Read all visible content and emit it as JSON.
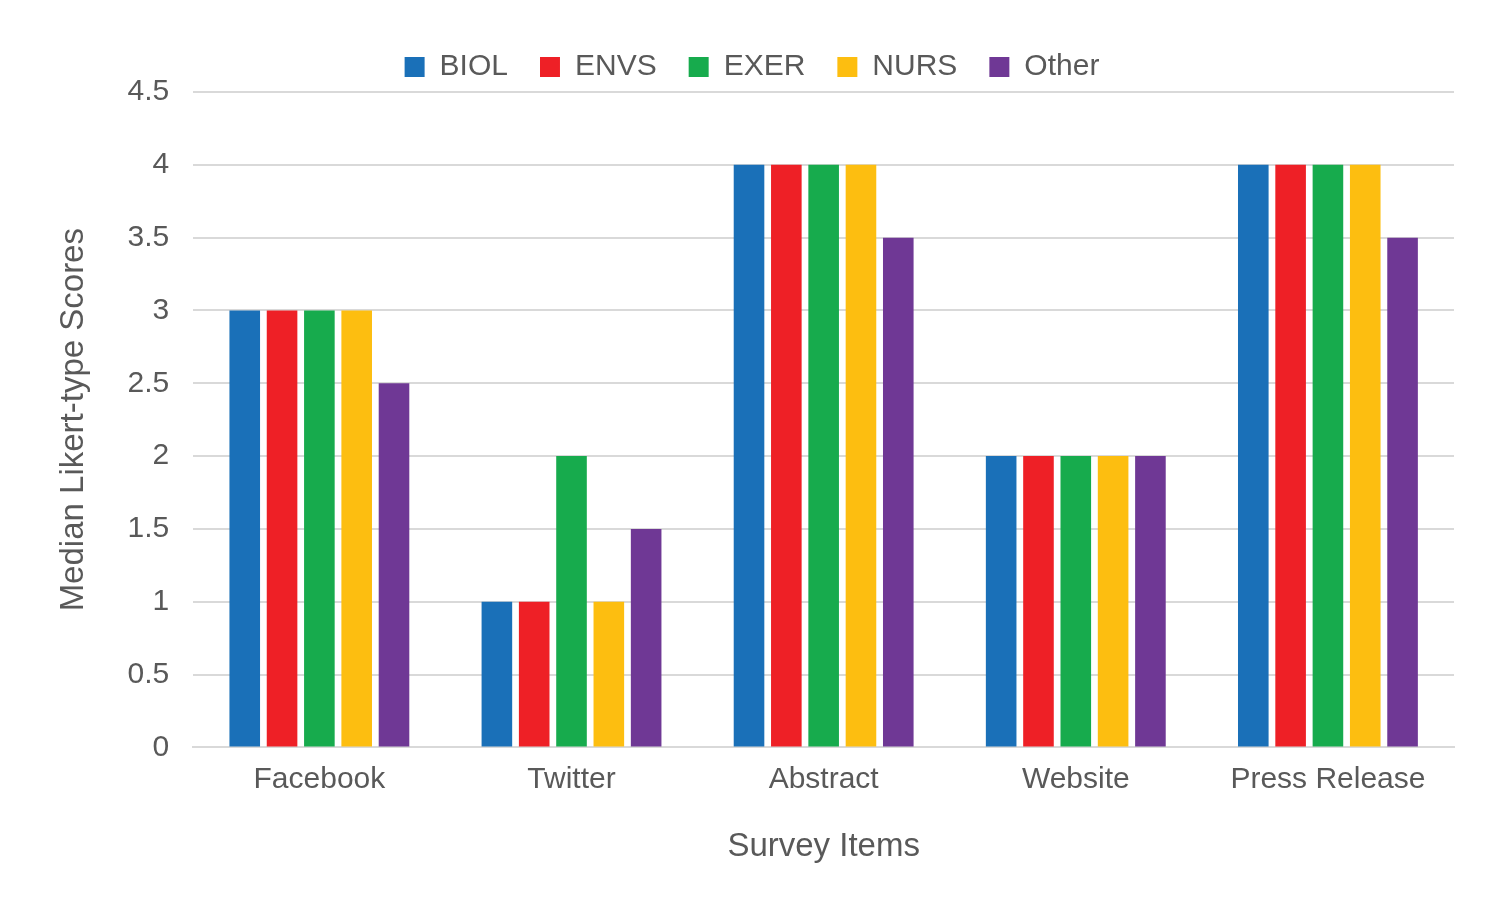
{
  "chart_data": {
    "type": "bar",
    "x_label": "Survey Items",
    "y_label": "Median Likert-type Scores",
    "categories": [
      "Facebook",
      "Twitter",
      "Abstract",
      "Website",
      "Press Release"
    ],
    "series": [
      {
        "name": "BIOL",
        "color": "#1a70b8",
        "values": [
          3,
          1,
          4,
          2,
          4
        ]
      },
      {
        "name": "ENVS",
        "color": "#ee2026",
        "values": [
          3,
          1,
          4,
          2,
          4
        ]
      },
      {
        "name": "EXER",
        "color": "#17ab4d",
        "values": [
          3,
          2,
          4,
          2,
          4
        ]
      },
      {
        "name": "NURS",
        "color": "#fdbe10",
        "values": [
          3,
          1,
          4,
          2,
          4
        ]
      },
      {
        "name": "Other",
        "color": "#6f3895",
        "values": [
          2.5,
          1.5,
          3.5,
          2,
          3.5
        ]
      }
    ],
    "ylim": [
      0,
      4.5
    ],
    "yticks": [
      0,
      0.5,
      1,
      1.5,
      2,
      2.5,
      3,
      3.5,
      4,
      4.5
    ],
    "grid": true,
    "legend": "top"
  }
}
